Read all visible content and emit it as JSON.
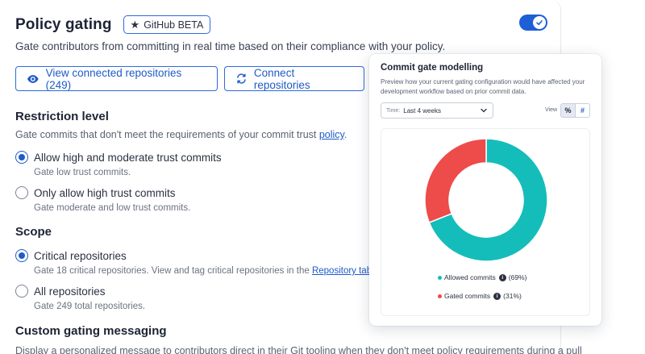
{
  "header": {
    "title": "Policy gating",
    "badge": "GitHub BETA",
    "badge_icon": "star-icon",
    "toggle_on": true
  },
  "description": "Gate contributors from committing in real time based on their compliance with your policy.",
  "buttons": {
    "view_repos": "View connected repositories (249)",
    "connect_repos": "Connect repositories"
  },
  "restriction": {
    "heading": "Restriction level",
    "subtitle_prefix": "Gate commits that don't meet the requirements of your commit trust ",
    "subtitle_link": "policy",
    "subtitle_suffix": ".",
    "options": [
      {
        "label": "Allow high and moderate trust commits",
        "desc": "Gate low trust commits.",
        "checked": true
      },
      {
        "label": "Only allow high trust commits",
        "desc": "Gate moderate and low trust commits.",
        "checked": false
      }
    ]
  },
  "scope": {
    "heading": "Scope",
    "options": [
      {
        "label": "Critical repositories",
        "desc_prefix": "Gate 18 critical repositories. View and tag critical repositories in the ",
        "desc_link": "Repository tab",
        "checked": true
      },
      {
        "label": "All repositories",
        "desc": "Gate 249 total repositories.",
        "checked": false
      }
    ]
  },
  "custom_messaging": {
    "heading": "Custom gating messaging",
    "desc": "Display a personalized message to contributors direct in their Git tooling when they don't meet policy requirements during a pull"
  },
  "popover": {
    "title": "Commit gate modelling",
    "desc": "Preview how your current gating configuration would have affected your development workflow based on prior commit data.",
    "time_label": "Time:",
    "time_value": "Last 4 weeks",
    "view_label": "View",
    "view_options": [
      "%",
      "#"
    ],
    "view_active": "%"
  },
  "colors": {
    "accent": "#1f5bc9",
    "allowed": "#14bdb9",
    "gated": "#ee4b4b"
  },
  "chart_data": {
    "type": "pie",
    "style": "donut",
    "title": "Commit gate modelling",
    "series": [
      {
        "name": "Allowed commits",
        "value": 69,
        "label": "(69%)",
        "color": "#14bdb9"
      },
      {
        "name": "Gated commits",
        "value": 31,
        "label": "(31%)",
        "color": "#ee4b4b"
      }
    ]
  }
}
